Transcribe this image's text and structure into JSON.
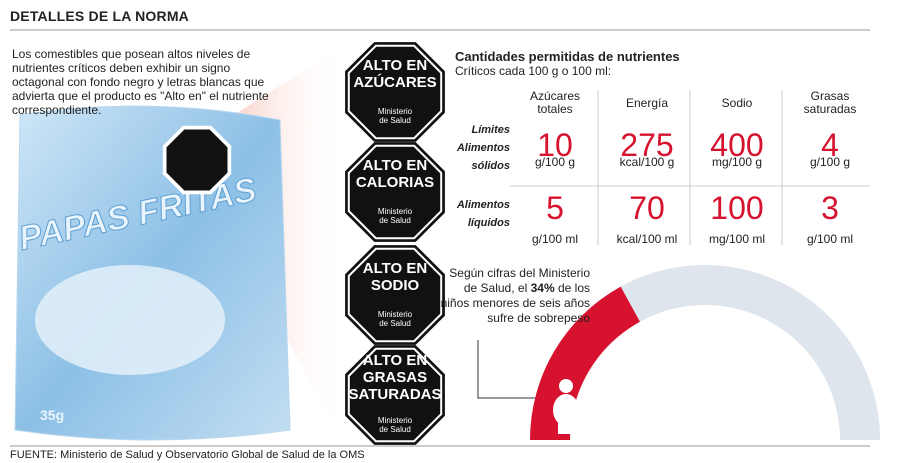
{
  "header": {
    "title": "DETALLES DE LA NORMA"
  },
  "intro": "Los comestibles que posean altos niveles de nutrientes críticos deben exhibir un signo octagonal con fondo negro y letras blancas que advierta que el producto es \"Alto en\" el nutriente correspondiente.",
  "package": {
    "brand": "PAPAS FRITAS",
    "weight": "35g"
  },
  "badges": [
    {
      "lines": [
        "ALTO EN",
        "AZÚCARES"
      ],
      "ministry": [
        "Ministerio",
        "de Salud"
      ]
    },
    {
      "lines": [
        "ALTO EN",
        "CALORIAS"
      ],
      "ministry": [
        "Ministerio",
        "de Salud"
      ]
    },
    {
      "lines": [
        "ALTO EN",
        "SODIO"
      ],
      "ministry": [
        "Ministerio",
        "de Salud"
      ]
    },
    {
      "lines": [
        "ALTO EN",
        "GRASAS",
        "SATURADAS"
      ],
      "ministry": [
        "Ministerio",
        "de Salud"
      ]
    }
  ],
  "table": {
    "title": "Cantidades permitidas de nutrientes",
    "subtitle": "Críticos cada 100 g o 100 ml:",
    "limits_label": "Límites",
    "columns": [
      [
        "Azúcares",
        "totales"
      ],
      [
        "Energía"
      ],
      [
        "Sodio"
      ],
      [
        "Grasas",
        "saturadas"
      ]
    ],
    "rows": [
      {
        "label": [
          "Alimentos",
          "sólidos"
        ],
        "cells": [
          {
            "value": 10,
            "unit": "g/100 g"
          },
          {
            "value": 275,
            "unit": "kcal/100 g"
          },
          {
            "value": 400,
            "unit": "mg/100 g"
          },
          {
            "value": 4,
            "unit": "g/100 g"
          }
        ]
      },
      {
        "label": [
          "Alimentos",
          "líquidos"
        ],
        "cells": [
          {
            "value": 5,
            "unit": "g/100 ml"
          },
          {
            "value": 70,
            "unit": "kcal/100 ml"
          },
          {
            "value": 100,
            "unit": "mg/100 ml"
          },
          {
            "value": 3,
            "unit": "g/100 ml"
          }
        ]
      }
    ]
  },
  "gauge": {
    "text_before": "Según cifras del Ministerio de Salud, el",
    "value": 34,
    "value_label": "34%",
    "text_after": "de los niños menores de seis años sufre de sobrepeso",
    "max": 100,
    "color": "#d7122f",
    "rest_color": "#dfe5ec"
  },
  "footer": "FUENTE: Ministerio de Salud y Observatorio Global de Salud de la OMS"
}
